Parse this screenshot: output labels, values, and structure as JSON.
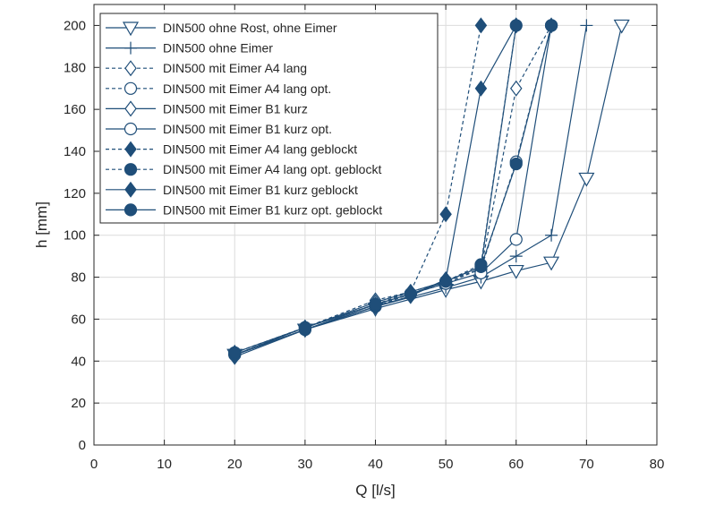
{
  "chart_data": {
    "type": "line",
    "title": "",
    "xlabel": "Q [l/s]",
    "ylabel": "h [mm]",
    "xlim": [
      0,
      80
    ],
    "ylim": [
      0,
      210
    ],
    "xticks": [
      0,
      10,
      20,
      30,
      40,
      50,
      60,
      70,
      80
    ],
    "yticks": [
      0,
      20,
      40,
      60,
      80,
      100,
      120,
      140,
      160,
      180,
      200
    ],
    "grid": true,
    "legend_position": "top-left",
    "color": "#1f4e79",
    "series": [
      {
        "name": "DIN500 ohne Rost, ohne Eimer",
        "marker": "triangle-down",
        "filled": false,
        "dashed": false,
        "x": [
          20,
          30,
          40,
          50,
          55,
          60,
          65,
          70,
          75
        ],
        "y": [
          43,
          55,
          65,
          74,
          78,
          83,
          87,
          127,
          200
        ]
      },
      {
        "name": "DIN500 ohne Eimer",
        "marker": "plus",
        "filled": false,
        "dashed": false,
        "x": [
          20,
          30,
          40,
          50,
          55,
          60,
          65,
          70
        ],
        "y": [
          43,
          55,
          66,
          75,
          80,
          90,
          100,
          200
        ]
      },
      {
        "name": "DIN500 mit Eimer A4 lang",
        "marker": "diamond",
        "filled": false,
        "dashed": true,
        "x": [
          20,
          30,
          40,
          45,
          50,
          55,
          60,
          65
        ],
        "y": [
          44,
          56,
          69,
          73,
          78,
          84,
          170,
          200
        ]
      },
      {
        "name": "DIN500 mit Eimer A4 lang opt.",
        "marker": "circle",
        "filled": false,
        "dashed": true,
        "x": [
          20,
          30,
          40,
          45,
          50,
          55,
          60,
          65
        ],
        "y": [
          44,
          56,
          67,
          72,
          77,
          84,
          135,
          200
        ]
      },
      {
        "name": "DIN500 mit Eimer B1 kurz",
        "marker": "diamond",
        "filled": false,
        "dashed": false,
        "x": [
          20,
          30,
          40,
          45,
          50,
          55,
          60
        ],
        "y": [
          43,
          56,
          68,
          73,
          78,
          85,
          200
        ]
      },
      {
        "name": "DIN500 mit Eimer B1 kurz opt.",
        "marker": "circle",
        "filled": false,
        "dashed": false,
        "x": [
          20,
          30,
          40,
          45,
          50,
          55,
          60,
          65
        ],
        "y": [
          43,
          55,
          67,
          72,
          77,
          82,
          98,
          200
        ]
      },
      {
        "name": "DIN500 mit Eimer A4 lang geblockt",
        "marker": "diamond",
        "filled": true,
        "dashed": true,
        "x": [
          20,
          30,
          40,
          45,
          50,
          55
        ],
        "y": [
          43,
          56,
          67,
          73,
          110,
          200
        ]
      },
      {
        "name": "DIN500 mit Eimer A4 lang opt. geblockt",
        "marker": "circle",
        "filled": true,
        "dashed": true,
        "x": [
          20,
          30,
          40,
          45,
          50,
          55,
          60
        ],
        "y": [
          43,
          55,
          66,
          72,
          78,
          86,
          200
        ]
      },
      {
        "name": "DIN500 mit Eimer B1 kurz geblockt",
        "marker": "diamond",
        "filled": true,
        "dashed": false,
        "x": [
          20,
          30,
          40,
          45,
          50,
          55,
          60
        ],
        "y": [
          42,
          55,
          66,
          71,
          79,
          170,
          200
        ]
      },
      {
        "name": "DIN500 mit Eimer B1 kurz opt. geblockt",
        "marker": "circle",
        "filled": true,
        "dashed": false,
        "x": [
          20,
          30,
          40,
          45,
          50,
          55,
          60,
          65
        ],
        "y": [
          44,
          56,
          67,
          72,
          78,
          85,
          134,
          200
        ]
      }
    ]
  }
}
